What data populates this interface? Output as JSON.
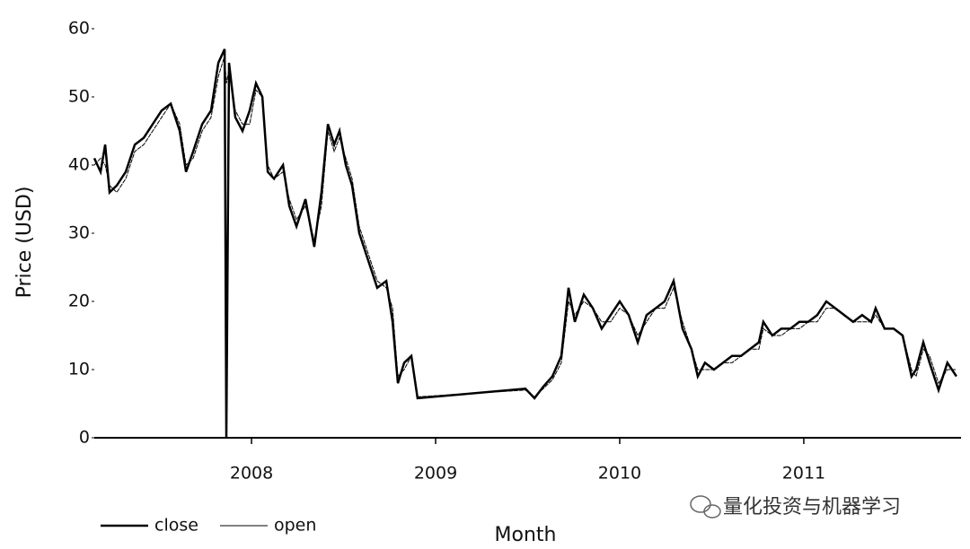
{
  "chart_data": {
    "type": "line",
    "y_label": "Price (USD)",
    "x_label": "Month",
    "watermark": "量化投资与机器学习",
    "x": [
      2007.146,
      2007.18,
      2007.205,
      2007.229,
      2007.268,
      2007.317,
      2007.366,
      2007.415,
      2007.463,
      2007.512,
      2007.561,
      2007.61,
      2007.644,
      2007.683,
      2007.732,
      2007.78,
      2007.82,
      2007.854,
      2007.863,
      2007.878,
      2007.912,
      2007.951,
      2007.99,
      2008.024,
      2008.059,
      2008.088,
      2008.122,
      2008.171,
      2008.205,
      2008.244,
      2008.293,
      2008.341,
      2008.38,
      2008.415,
      2008.449,
      2008.478,
      2008.512,
      2008.546,
      2008.585,
      2008.634,
      2008.683,
      2008.732,
      2008.766,
      2008.795,
      2008.829,
      2008.868,
      2008.902,
      2009.488,
      2009.537,
      2009.585,
      2009.634,
      2009.683,
      2009.722,
      2009.756,
      2009.805,
      2009.854,
      2009.902,
      2009.951,
      2010.0,
      2010.049,
      2010.098,
      2010.146,
      2010.195,
      2010.244,
      2010.293,
      2010.341,
      2010.39,
      2010.424,
      2010.463,
      2010.512,
      2010.561,
      2010.61,
      2010.659,
      2010.707,
      2010.756,
      2010.78,
      2010.829,
      2010.878,
      2010.927,
      2010.976,
      2011.024,
      2011.073,
      2011.122,
      2011.171,
      2011.22,
      2011.268,
      2011.317,
      2011.366,
      2011.39,
      2011.439,
      2011.488,
      2011.537,
      2011.585,
      2011.61,
      2011.649,
      2011.683,
      2011.732,
      2011.78,
      2011.829
    ],
    "series": [
      {
        "name": "close",
        "color": "#000000",
        "values": [
          41,
          39,
          43,
          36,
          37,
          39,
          43,
          44,
          46,
          48,
          49,
          45,
          39,
          42,
          46,
          48,
          55,
          57,
          0,
          55,
          47,
          45,
          48,
          52,
          50,
          39,
          38,
          40,
          34,
          31,
          35,
          28,
          36,
          46,
          43,
          45,
          40,
          37,
          30,
          26,
          22,
          23,
          17,
          8,
          11,
          12,
          5.8,
          7.2,
          5.8,
          7.5,
          9,
          12,
          22,
          17,
          21,
          19,
          16,
          18,
          20,
          18,
          14,
          18,
          19,
          20,
          23,
          16,
          13,
          9,
          11,
          10,
          11,
          12,
          12,
          13,
          14,
          17,
          15,
          16,
          16,
          17,
          17,
          18,
          20,
          19,
          18,
          17,
          18,
          17,
          19,
          16,
          16,
          15,
          9,
          10,
          14,
          11,
          7,
          11,
          9
        ]
      },
      {
        "name": "open",
        "color": "#000000",
        "values": [
          40,
          41,
          40,
          37,
          36,
          38,
          42,
          43,
          45,
          47,
          49,
          46,
          40,
          41,
          45,
          47,
          53,
          56,
          52,
          54,
          48,
          46,
          46,
          51,
          50,
          40,
          38,
          39,
          35,
          32,
          34,
          29,
          34,
          45,
          42,
          44,
          41,
          38,
          31,
          27,
          23,
          22,
          19,
          9,
          10,
          12,
          6,
          7,
          6,
          7.2,
          8.5,
          11,
          20,
          18,
          20,
          19,
          17,
          17,
          19,
          18,
          15,
          17,
          19,
          19,
          22,
          17,
          13,
          10,
          10,
          10,
          11,
          11,
          12,
          13,
          13,
          16,
          15,
          15,
          16,
          16,
          17,
          17,
          19,
          19,
          18,
          17,
          17,
          17,
          18,
          16,
          16,
          15,
          10,
          9,
          13,
          12,
          8,
          10,
          10
        ]
      }
    ],
    "xlim": [
      2007.146,
      2011.854
    ],
    "xticks": [
      2008,
      2009,
      2010,
      2011
    ],
    "ylim": [
      0,
      60
    ],
    "yticks": [
      0,
      10,
      20,
      30,
      40,
      50,
      60
    ]
  }
}
